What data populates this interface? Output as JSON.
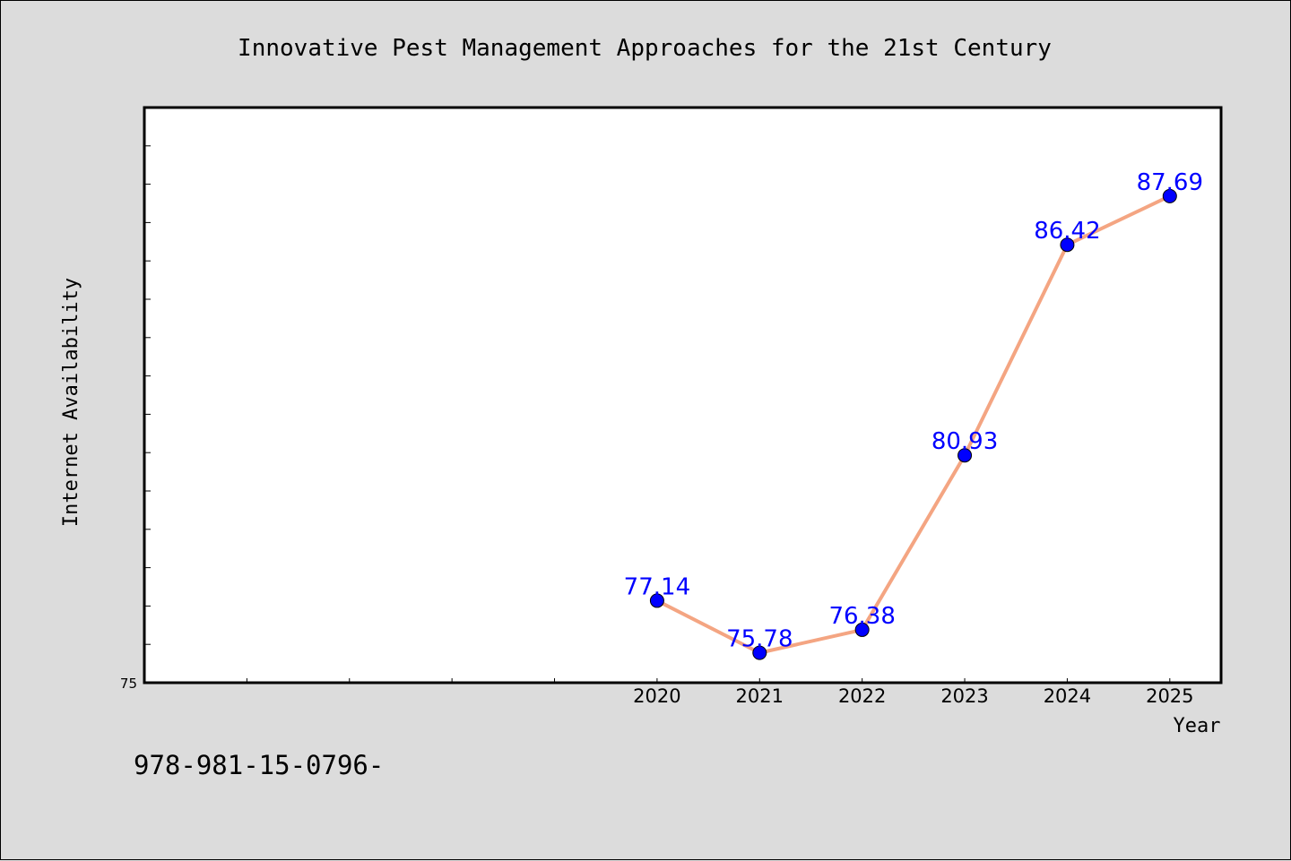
{
  "chart_data": {
    "type": "line",
    "title": "Innovative Pest Management Approaches for the 21st Century",
    "xlabel": "Year",
    "ylabel": "Internet Availability",
    "x": [
      "2020",
      "2021",
      "2022",
      "2023",
      "2024",
      "2025"
    ],
    "x_numeric": [
      2020,
      2021,
      2022,
      2023,
      2024,
      2025
    ],
    "xlim": [
      2015.0,
      2025.5
    ],
    "series": [
      {
        "values": [
          77.14,
          75.78,
          76.38,
          80.93,
          86.42,
          87.69
        ],
        "data_labels": [
          "77.14",
          "75.78",
          "76.38",
          "80.93",
          "86.42",
          "87.69"
        ]
      }
    ],
    "ylim": [
      75,
      90
    ],
    "y_tick_labels": [
      "75"
    ],
    "grid": false,
    "legend": "none",
    "colors": {
      "line": "#f4a582",
      "marker": "#0000ff",
      "data_label": "#0000ff",
      "plot_background": "#ffffff",
      "page_background": "#dcdcdc"
    }
  },
  "footer": {
    "text": "978-981-15-0796-"
  }
}
